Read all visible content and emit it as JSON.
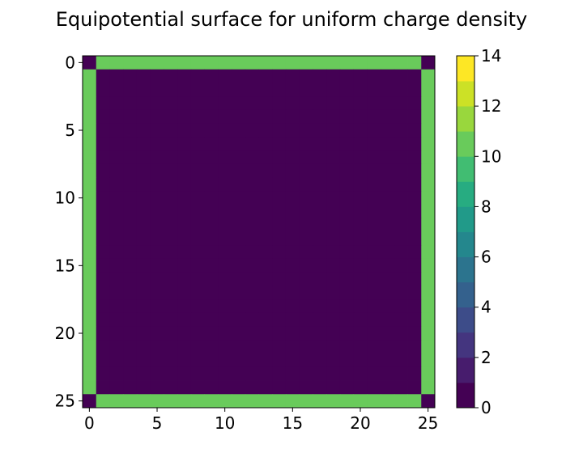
{
  "chart_data": {
    "type": "heatmap",
    "title": "Equipotential surface for uniform charge density",
    "xlabel": "",
    "ylabel": "",
    "grid_size": 26,
    "interior_value": 0,
    "boundary_value": 10,
    "corner_value": 0,
    "x_ticks": [
      "0",
      "5",
      "10",
      "15",
      "20",
      "25"
    ],
    "y_ticks": [
      "0",
      "5",
      "10",
      "15",
      "20",
      "25"
    ],
    "colorbar": {
      "colormap": "viridis",
      "range": [
        0,
        14
      ],
      "levels": 14,
      "ticks": [
        "0",
        "2",
        "4",
        "6",
        "8",
        "10",
        "12",
        "14"
      ]
    }
  }
}
